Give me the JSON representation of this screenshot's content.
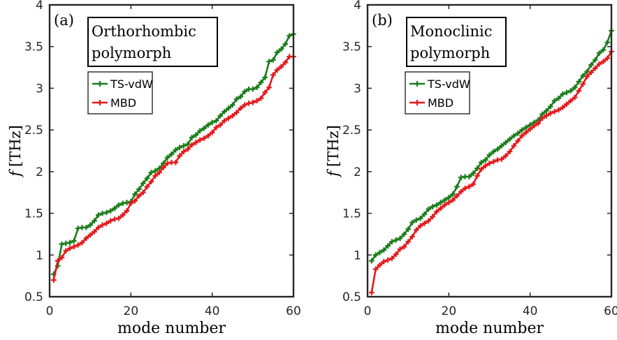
{
  "chart_data": [
    {
      "type": "line",
      "panel_label": "(a)",
      "annotation": [
        "Orthorhombic",
        "polymorph"
      ],
      "xlabel": "mode number",
      "ylabel_symbol": "f",
      "ylabel_unit": "[THz]",
      "xlim": [
        0,
        60
      ],
      "ylim": [
        0.5,
        4
      ],
      "xticks": [
        0,
        20,
        40,
        60
      ],
      "yticks": [
        0.5,
        1,
        1.5,
        2,
        2.5,
        3,
        3.5,
        4
      ],
      "ytick_labels": [
        "0.5",
        "1",
        "1.5",
        "2",
        "2.5",
        "3",
        "3.5",
        "4"
      ],
      "grid": false,
      "legend_position": "upper-left",
      "series": [
        {
          "name": "TS-vdW",
          "color": "#1a7d1a",
          "x": [
            1,
            2,
            3,
            4,
            5,
            6,
            7,
            8,
            9,
            10,
            11,
            12,
            13,
            14,
            15,
            16,
            17,
            18,
            19,
            20,
            21,
            22,
            23,
            24,
            25,
            26,
            27,
            28,
            29,
            30,
            31,
            32,
            33,
            34,
            35,
            36,
            37,
            38,
            39,
            40,
            41,
            42,
            43,
            44,
            45,
            46,
            47,
            48,
            49,
            50,
            51,
            52,
            53,
            54,
            55,
            56,
            57,
            58,
            59,
            60
          ],
          "y": [
            0.77,
            0.87,
            1.13,
            1.14,
            1.15,
            1.17,
            1.32,
            1.33,
            1.33,
            1.36,
            1.41,
            1.48,
            1.5,
            1.51,
            1.53,
            1.56,
            1.6,
            1.62,
            1.63,
            1.64,
            1.73,
            1.79,
            1.86,
            1.92,
            1.99,
            2.01,
            2.04,
            2.1,
            2.17,
            2.21,
            2.26,
            2.29,
            2.31,
            2.33,
            2.41,
            2.44,
            2.49,
            2.52,
            2.56,
            2.59,
            2.61,
            2.67,
            2.72,
            2.76,
            2.8,
            2.87,
            2.9,
            2.96,
            2.99,
            2.99,
            3.01,
            3.07,
            3.13,
            3.32,
            3.34,
            3.43,
            3.47,
            3.53,
            3.63,
            3.65
          ]
        },
        {
          "name": "MBD",
          "color": "#e31a1c",
          "x": [
            1,
            2,
            3,
            4,
            5,
            6,
            7,
            8,
            9,
            10,
            11,
            12,
            13,
            14,
            15,
            16,
            17,
            18,
            19,
            20,
            21,
            22,
            23,
            24,
            25,
            26,
            27,
            28,
            29,
            30,
            31,
            32,
            33,
            34,
            35,
            36,
            37,
            38,
            39,
            40,
            41,
            42,
            43,
            44,
            45,
            46,
            47,
            48,
            49,
            50,
            51,
            52,
            53,
            54,
            55,
            56,
            57,
            58,
            59,
            60
          ],
          "y": [
            0.7,
            0.93,
            0.97,
            1.05,
            1.08,
            1.1,
            1.12,
            1.15,
            1.2,
            1.24,
            1.28,
            1.33,
            1.36,
            1.38,
            1.41,
            1.43,
            1.44,
            1.48,
            1.53,
            1.62,
            1.65,
            1.71,
            1.75,
            1.82,
            1.88,
            1.95,
            1.99,
            2.05,
            2.1,
            2.11,
            2.11,
            2.19,
            2.24,
            2.27,
            2.32,
            2.35,
            2.38,
            2.4,
            2.43,
            2.47,
            2.53,
            2.56,
            2.61,
            2.64,
            2.67,
            2.71,
            2.76,
            2.8,
            2.82,
            2.83,
            2.85,
            2.88,
            2.95,
            3.01,
            3.16,
            3.22,
            3.26,
            3.31,
            3.38,
            3.38
          ]
        }
      ]
    },
    {
      "type": "line",
      "panel_label": "(b)",
      "annotation": [
        "Monoclinic",
        "polymorph"
      ],
      "xlabel": "mode number",
      "ylabel_symbol": "f",
      "ylabel_unit": "[THz]",
      "xlim": [
        0,
        60
      ],
      "ylim": [
        0.5,
        4
      ],
      "xticks": [
        0,
        20,
        40,
        60
      ],
      "yticks": [
        0.5,
        1,
        1.5,
        2,
        2.5,
        3,
        3.5,
        4
      ],
      "ytick_labels": [
        "0.5",
        "1",
        "1.5",
        "2",
        "2.5",
        "3",
        "3.5",
        "4"
      ],
      "grid": false,
      "legend_position": "upper-left",
      "series": [
        {
          "name": "TS-vdW",
          "color": "#1a7d1a",
          "x": [
            1,
            2,
            3,
            4,
            5,
            6,
            7,
            8,
            9,
            10,
            11,
            12,
            13,
            14,
            15,
            16,
            17,
            18,
            19,
            20,
            21,
            22,
            23,
            24,
            25,
            26,
            27,
            28,
            29,
            30,
            31,
            32,
            33,
            34,
            35,
            36,
            37,
            38,
            39,
            40,
            41,
            42,
            43,
            44,
            45,
            46,
            47,
            48,
            49,
            50,
            51,
            52,
            53,
            54,
            55,
            56,
            57,
            58,
            59,
            60
          ],
          "y": [
            0.93,
            1.0,
            1.03,
            1.06,
            1.11,
            1.16,
            1.18,
            1.2,
            1.25,
            1.31,
            1.39,
            1.42,
            1.44,
            1.49,
            1.55,
            1.58,
            1.6,
            1.63,
            1.66,
            1.69,
            1.73,
            1.82,
            1.93,
            1.94,
            1.94,
            1.98,
            2.04,
            2.11,
            2.14,
            2.2,
            2.24,
            2.27,
            2.31,
            2.35,
            2.39,
            2.43,
            2.46,
            2.5,
            2.53,
            2.56,
            2.59,
            2.62,
            2.69,
            2.73,
            2.78,
            2.85,
            2.88,
            2.93,
            2.95,
            2.97,
            3.01,
            3.08,
            3.15,
            3.2,
            3.28,
            3.34,
            3.42,
            3.46,
            3.55,
            3.69
          ]
        },
        {
          "name": "MBD",
          "color": "#e31a1c",
          "x": [
            1,
            2,
            3,
            4,
            5,
            6,
            7,
            8,
            9,
            10,
            11,
            12,
            13,
            14,
            15,
            16,
            17,
            18,
            19,
            20,
            21,
            22,
            23,
            24,
            25,
            26,
            27,
            28,
            29,
            30,
            31,
            32,
            33,
            34,
            35,
            36,
            37,
            38,
            39,
            40,
            41,
            42,
            43,
            44,
            45,
            46,
            47,
            48,
            49,
            50,
            51,
            52,
            53,
            54,
            55,
            56,
            57,
            58,
            59,
            60
          ],
          "y": [
            0.55,
            0.83,
            0.88,
            0.92,
            0.94,
            0.96,
            1.01,
            1.07,
            1.1,
            1.16,
            1.22,
            1.3,
            1.35,
            1.38,
            1.41,
            1.46,
            1.52,
            1.56,
            1.6,
            1.63,
            1.66,
            1.71,
            1.76,
            1.8,
            1.82,
            1.85,
            1.95,
            2.03,
            2.07,
            2.1,
            2.12,
            2.14,
            2.15,
            2.19,
            2.24,
            2.31,
            2.37,
            2.43,
            2.47,
            2.51,
            2.55,
            2.58,
            2.64,
            2.67,
            2.7,
            2.72,
            2.74,
            2.77,
            2.81,
            2.85,
            2.89,
            2.97,
            3.05,
            3.14,
            3.19,
            3.24,
            3.29,
            3.32,
            3.36,
            3.44
          ]
        }
      ]
    }
  ]
}
